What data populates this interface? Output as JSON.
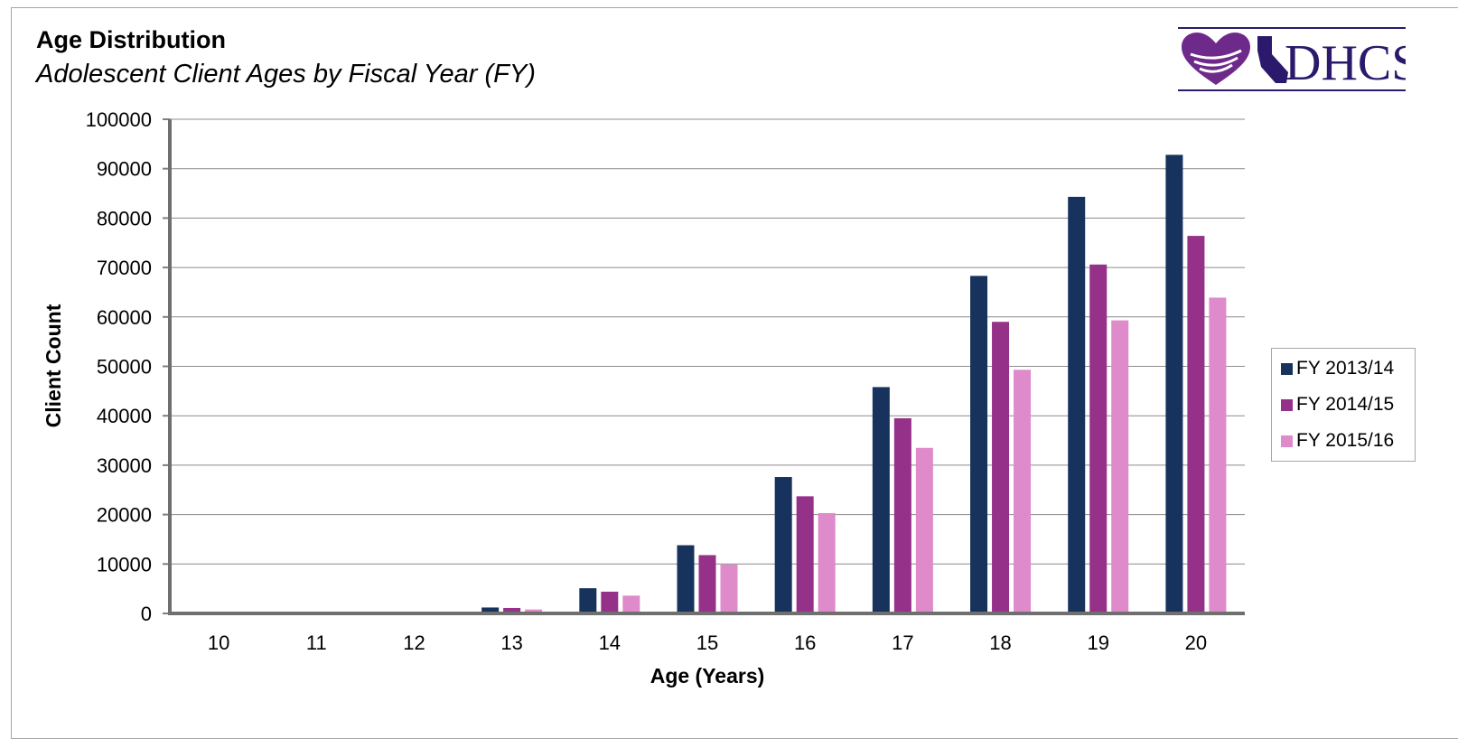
{
  "header": {
    "title": "Age Distribution",
    "subtitle": "Adolescent Client Ages by Fiscal Year (FY)"
  },
  "logo": {
    "text": "DHCS",
    "icon": "dhcs-heart-california-logo",
    "color": "#2b1a6b",
    "accent": "#6e2a8a"
  },
  "chart_data": {
    "type": "bar",
    "title": "Age Distribution",
    "subtitle": "Adolescent Client Ages by Fiscal Year (FY)",
    "xlabel": "Age (Years)",
    "ylabel": "Client Count",
    "ylim": [
      0,
      100000
    ],
    "yticks": [
      0,
      10000,
      20000,
      30000,
      40000,
      50000,
      60000,
      70000,
      80000,
      90000,
      100000
    ],
    "grid": true,
    "legend_position": "right",
    "categories": [
      "10",
      "11",
      "12",
      "13",
      "14",
      "15",
      "16",
      "17",
      "18",
      "19",
      "20"
    ],
    "series": [
      {
        "name": "FY 2013/14",
        "color": "#17325c",
        "values": [
          0,
          0,
          0,
          1200,
          5100,
          13800,
          27600,
          45800,
          68300,
          84300,
          92800
        ]
      },
      {
        "name": "FY 2014/15",
        "color": "#953189",
        "values": [
          0,
          0,
          0,
          1100,
          4400,
          11800,
          23700,
          39500,
          59000,
          70600,
          76400
        ]
      },
      {
        "name": "FY 2015/16",
        "color": "#de8acb",
        "values": [
          0,
          0,
          0,
          800,
          3600,
          9900,
          20300,
          33500,
          49300,
          59300,
          63900
        ]
      }
    ]
  }
}
